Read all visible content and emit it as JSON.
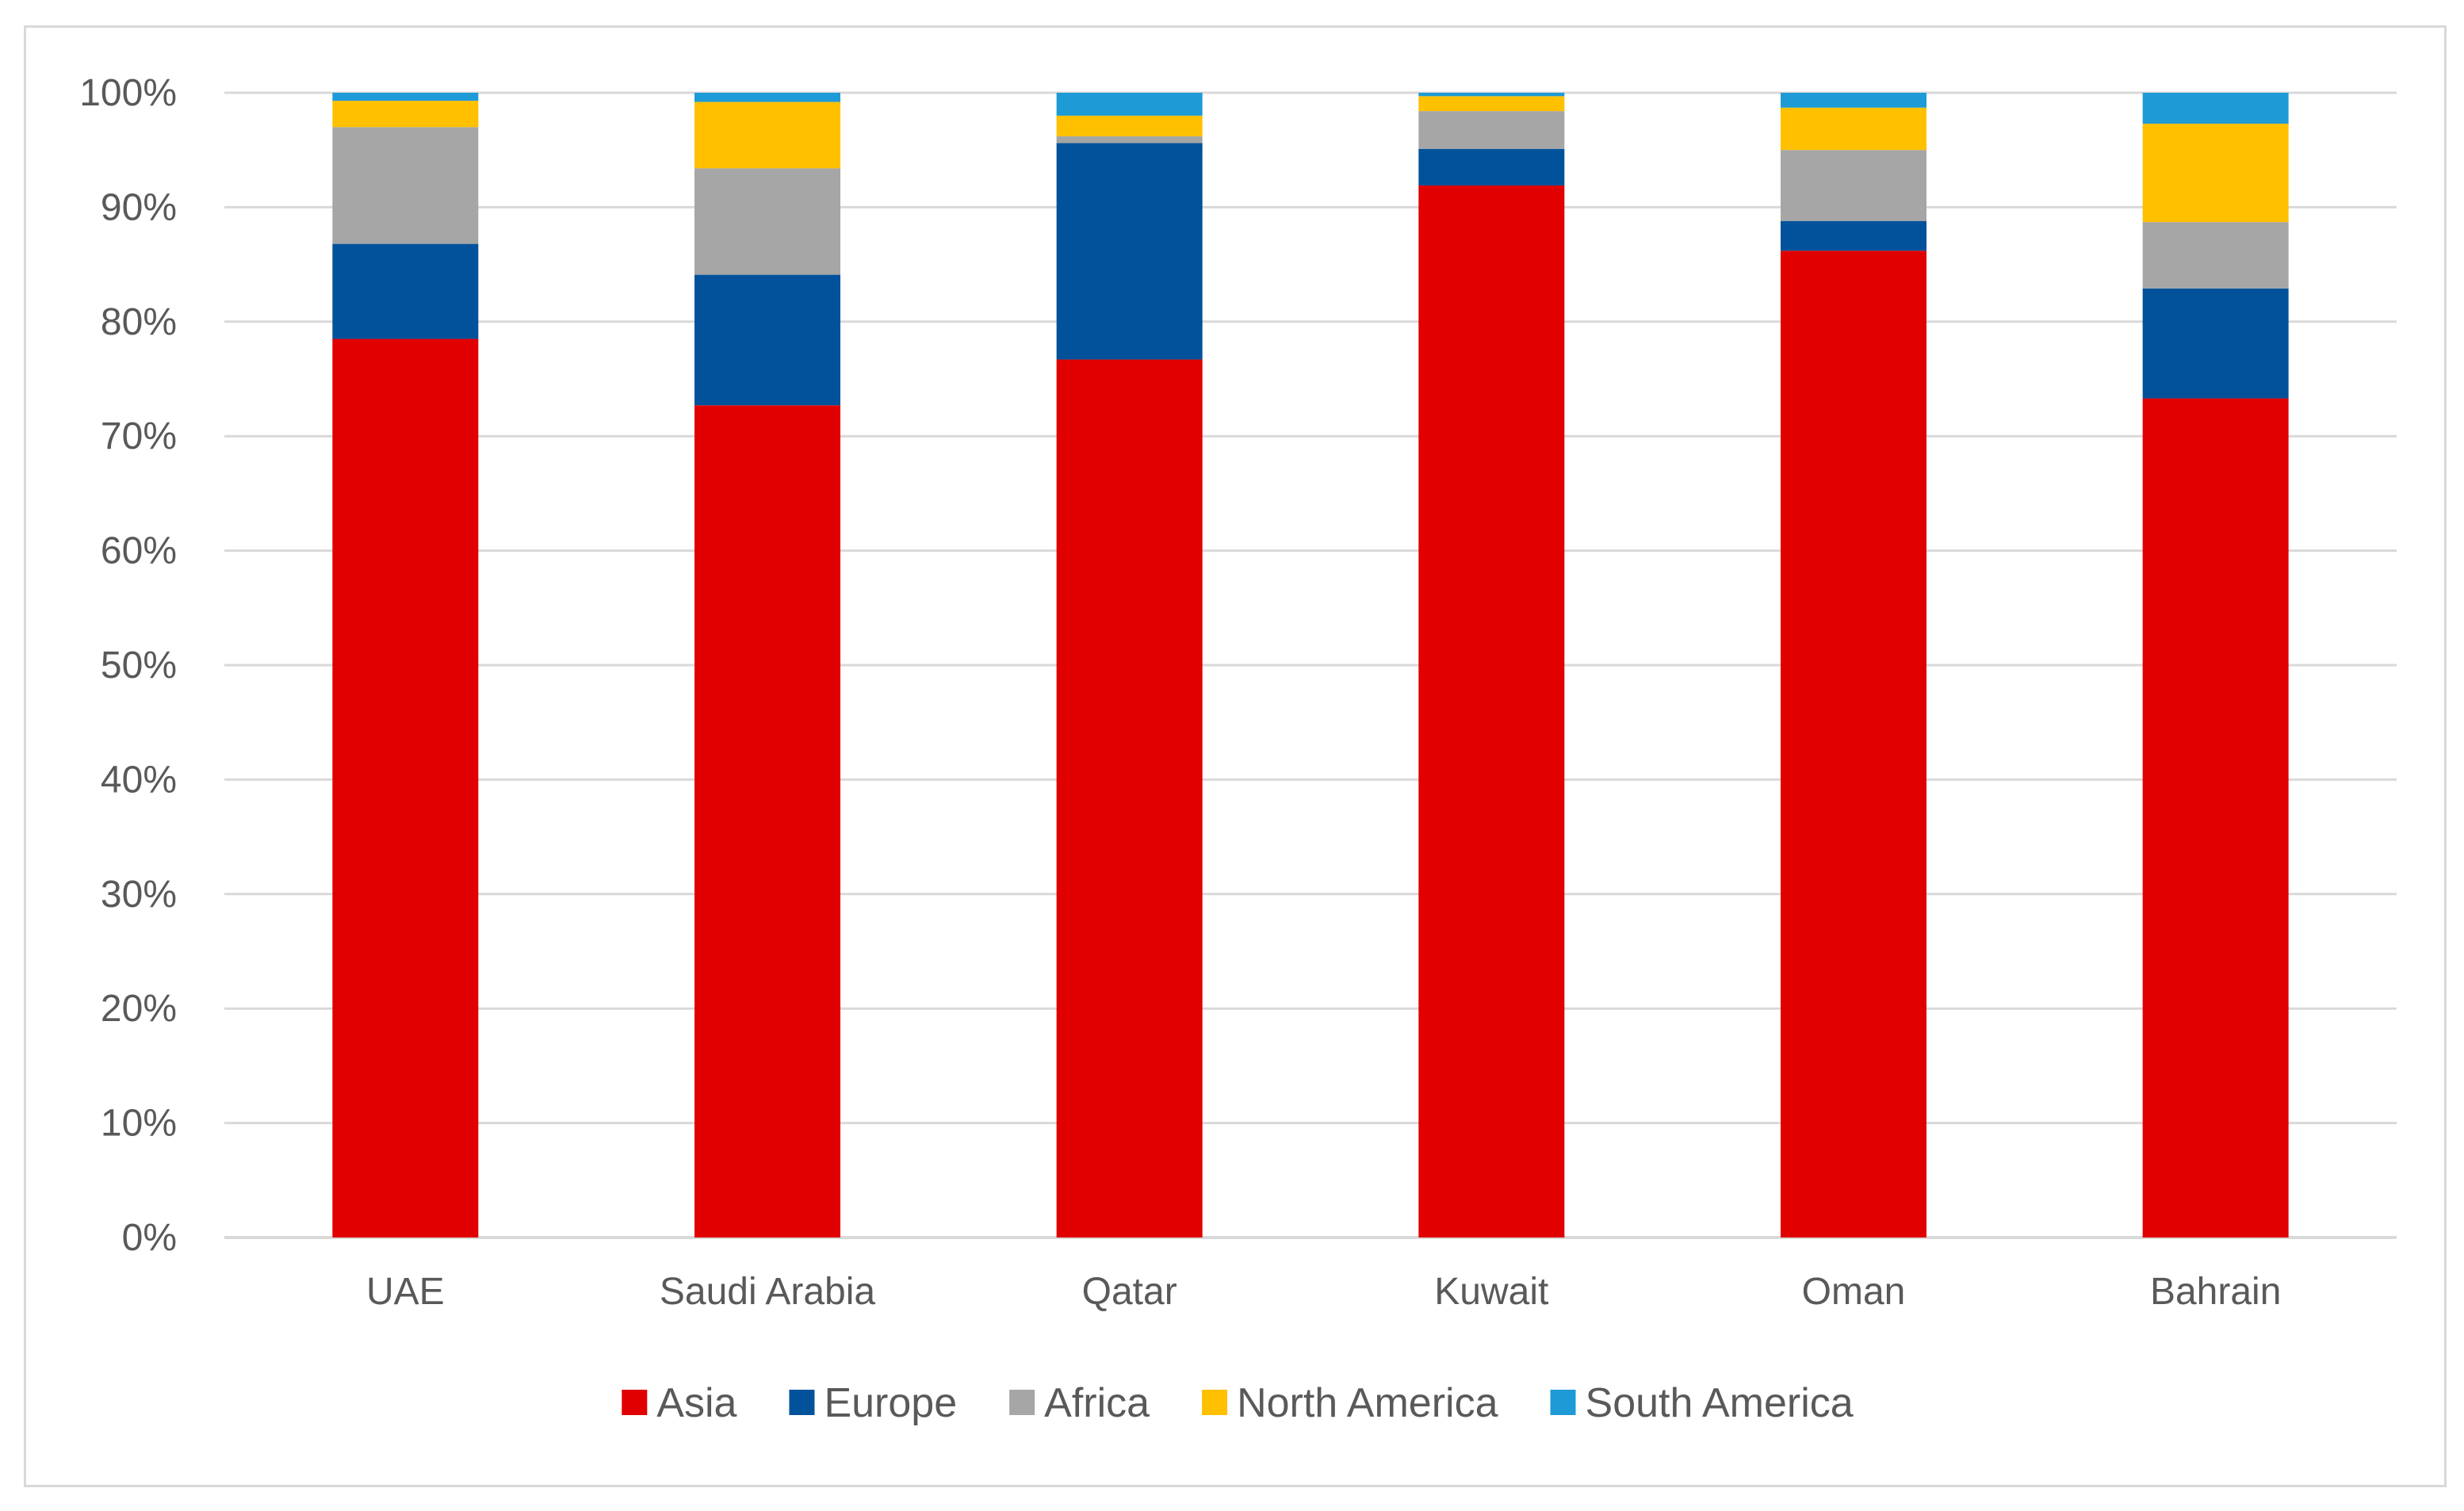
{
  "chart_data": {
    "type": "bar",
    "stacked": true,
    "title": "",
    "xlabel": "",
    "ylabel": "",
    "ylim": [
      0,
      100
    ],
    "y_ticks": [
      "0%",
      "10%",
      "20%",
      "30%",
      "40%",
      "50%",
      "60%",
      "70%",
      "80%",
      "90%",
      "100%"
    ],
    "grid": true,
    "legend_position": "bottom",
    "categories": [
      "UAE",
      "Saudi Arabia",
      "Qatar",
      "Kuwait",
      "Oman",
      "Bahrain"
    ],
    "series": [
      {
        "name": "Asia",
        "color": "#e00000",
        "values": [
          78.5,
          72.7,
          76.7,
          91.9,
          86.2,
          73.3
        ]
      },
      {
        "name": "Europe",
        "color": "#01529b",
        "values": [
          8.3,
          11.4,
          18.9,
          3.2,
          2.6,
          9.6
        ]
      },
      {
        "name": "Africa",
        "color": "#a6a6a6",
        "values": [
          10.2,
          9.3,
          0.6,
          3.3,
          6.2,
          5.8
        ]
      },
      {
        "name": "North America",
        "color": "#ffc000",
        "values": [
          2.3,
          5.8,
          1.8,
          1.3,
          3.7,
          8.6
        ]
      },
      {
        "name": "South America",
        "color": "#1e9ad6",
        "values": [
          0.7,
          0.8,
          2.0,
          0.3,
          1.3,
          2.7
        ]
      }
    ]
  }
}
